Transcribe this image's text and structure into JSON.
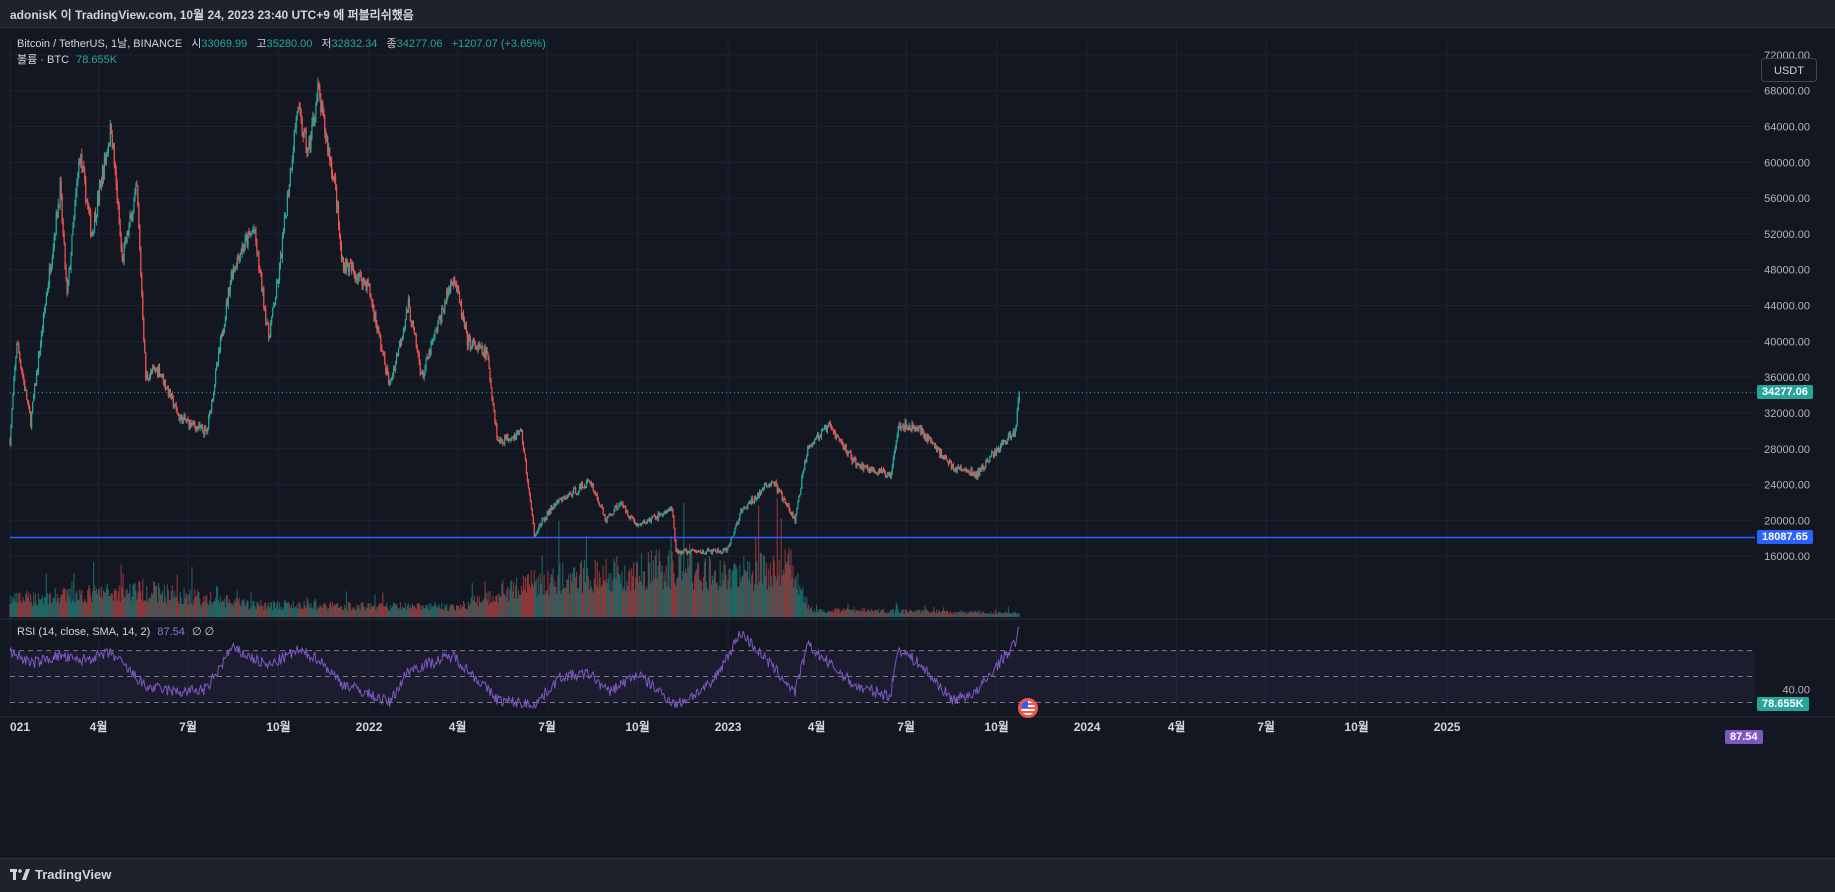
{
  "header": {
    "publish_line": "adonisK 이 TradingView.com, 10월 24, 2023 23:40 UTC+9 에 퍼블리쉬했음"
  },
  "legend": {
    "symbol": "Bitcoin / TetherUS, 1날, BINANCE",
    "o_label": "시",
    "o_value": "33069.99",
    "h_label": "고",
    "h_value": "35280.00",
    "l_label": "저",
    "l_value": "32832.34",
    "c_label": "종",
    "c_value": "34277.06",
    "change": "+1207.07 (+3.65%)",
    "volume_label": "볼륨 · BTC",
    "volume_value": "78.655K"
  },
  "rsi_legend": {
    "label": "RSI (14, close, SMA, 14, 2)",
    "value": "87.54",
    "extra": "∅ ∅"
  },
  "currency_button": "USDT",
  "price_tags": {
    "last_price": "34277.06",
    "horizontal_line": "18087.65",
    "volume": "78.655K",
    "rsi": "87.54"
  },
  "colors": {
    "background": "#131722",
    "up": "#26a69a",
    "down": "#ef5350",
    "hline": "#2962ff",
    "rsi": "#7e57c2"
  },
  "footer": {
    "brand": "TradingView"
  },
  "chart_data": [
    {
      "type": "candlestick",
      "title": "Bitcoin / TetherUS, 1날, BINANCE",
      "xlim": [
        "2021-01-01",
        "2025-11-10"
      ],
      "ylim": [
        12000,
        74000
      ],
      "y_ticks": [
        "72000.00",
        "68000.00",
        "64000.00",
        "60000.00",
        "56000.00",
        "52000.00",
        "48000.00",
        "44000.00",
        "40000.00",
        "36000.00",
        "32000.00",
        "28000.00",
        "24000.00",
        "20000.00",
        "16000.00"
      ],
      "x_ticks": [
        {
          "date": "2021-01-01",
          "label": "021"
        },
        {
          "date": "2021-04-01",
          "label": "4월"
        },
        {
          "date": "2021-07-01",
          "label": "7월"
        },
        {
          "date": "2021-10-01",
          "label": "10월"
        },
        {
          "date": "2022-01-01",
          "label": "2022"
        },
        {
          "date": "2022-04-01",
          "label": "4월"
        },
        {
          "date": "2022-07-01",
          "label": "7월"
        },
        {
          "date": "2022-10-01",
          "label": "10월"
        },
        {
          "date": "2023-01-01",
          "label": "2023"
        },
        {
          "date": "2023-04-01",
          "label": "4월"
        },
        {
          "date": "2023-07-01",
          "label": "7월"
        },
        {
          "date": "2023-10-01",
          "label": "10월"
        },
        {
          "date": "2024-01-01",
          "label": "2024"
        },
        {
          "date": "2024-04-01",
          "label": "4월"
        },
        {
          "date": "2024-07-01",
          "label": "7월"
        },
        {
          "date": "2024-10-01",
          "label": "10월"
        },
        {
          "date": "2025-01-01",
          "label": "2025"
        }
      ],
      "close_path": [
        [
          "2021-01-01",
          29000
        ],
        [
          "2021-01-08",
          40000
        ],
        [
          "2021-01-22",
          31000
        ],
        [
          "2021-02-08",
          46000
        ],
        [
          "2021-02-21",
          57000
        ],
        [
          "2021-02-28",
          45000
        ],
        [
          "2021-03-13",
          61000
        ],
        [
          "2021-03-25",
          52000
        ],
        [
          "2021-04-14",
          64000
        ],
        [
          "2021-04-25",
          49000
        ],
        [
          "2021-05-10",
          57000
        ],
        [
          "2021-05-19",
          36000
        ],
        [
          "2021-06-01",
          37000
        ],
        [
          "2021-06-22",
          31500
        ],
        [
          "2021-07-20",
          29800
        ],
        [
          "2021-08-14",
          47500
        ],
        [
          "2021-08-23",
          50000
        ],
        [
          "2021-09-06",
          52500
        ],
        [
          "2021-09-21",
          40500
        ],
        [
          "2021-10-01",
          47000
        ],
        [
          "2021-10-20",
          66000
        ],
        [
          "2021-10-31",
          61000
        ],
        [
          "2021-11-10",
          68000
        ],
        [
          "2021-11-28",
          57000
        ],
        [
          "2021-12-04",
          49000
        ],
        [
          "2021-12-31",
          46300
        ],
        [
          "2022-01-22",
          35000
        ],
        [
          "2022-02-10",
          44000
        ],
        [
          "2022-02-24",
          36000
        ],
        [
          "2022-03-28",
          47500
        ],
        [
          "2022-04-11",
          40000
        ],
        [
          "2022-05-01",
          38500
        ],
        [
          "2022-05-12",
          28800
        ],
        [
          "2022-06-05",
          29900
        ],
        [
          "2022-06-18",
          18500
        ],
        [
          "2022-07-08",
          21700
        ],
        [
          "2022-08-14",
          24400
        ],
        [
          "2022-08-30",
          20000
        ],
        [
          "2022-09-13",
          22000
        ],
        [
          "2022-10-01",
          19400
        ],
        [
          "2022-11-05",
          21300
        ],
        [
          "2022-11-09",
          16500
        ],
        [
          "2022-12-31",
          16550
        ],
        [
          "2023-01-14",
          20900
        ],
        [
          "2023-02-15",
          24500
        ],
        [
          "2023-03-10",
          20000
        ],
        [
          "2023-03-23",
          28300
        ],
        [
          "2023-04-14",
          30500
        ],
        [
          "2023-05-12",
          26200
        ],
        [
          "2023-06-15",
          25000
        ],
        [
          "2023-06-23",
          30700
        ],
        [
          "2023-07-14",
          30300
        ],
        [
          "2023-08-17",
          26000
        ],
        [
          "2023-09-11",
          25100
        ],
        [
          "2023-10-01",
          27900
        ],
        [
          "2023-10-20",
          30000
        ],
        [
          "2023-10-24",
          34277
        ]
      ],
      "last_close": 34277.06,
      "horizontal_line": 18087.65
    },
    {
      "type": "bar",
      "title": "볼륨 · BTC",
      "last_value": "78.655K",
      "volume_levels": [
        [
          "2021-01-01",
          0.35
        ],
        [
          "2021-05-19",
          0.55
        ],
        [
          "2021-09-01",
          0.25
        ],
        [
          "2021-12-31",
          0.22
        ],
        [
          "2022-04-01",
          0.2
        ],
        [
          "2022-06-18",
          0.7
        ],
        [
          "2022-09-01",
          0.9
        ],
        [
          "2022-11-09",
          1.0
        ],
        [
          "2023-01-01",
          0.85
        ],
        [
          "2023-03-10",
          1.0
        ],
        [
          "2023-03-25",
          0.15
        ],
        [
          "2023-10-24",
          0.08
        ]
      ]
    },
    {
      "type": "line",
      "title": "RSI (14, close, SMA, 14, 2)",
      "ylim": [
        25,
        92
      ],
      "y_ticks": [
        "40.00"
      ],
      "bands": [
        30,
        50,
        70
      ],
      "last_value": 87.54,
      "values": [
        [
          "2021-01-01",
          70
        ],
        [
          "2021-01-22",
          60
        ],
        [
          "2021-02-21",
          66
        ],
        [
          "2021-03-10",
          62
        ],
        [
          "2021-04-14",
          68
        ],
        [
          "2021-05-19",
          42
        ],
        [
          "2021-06-22",
          38
        ],
        [
          "2021-07-20",
          40
        ],
        [
          "2021-08-14",
          72
        ],
        [
          "2021-09-21",
          58
        ],
        [
          "2021-10-20",
          70
        ],
        [
          "2021-11-10",
          64
        ],
        [
          "2021-12-04",
          45
        ],
        [
          "2022-01-22",
          30
        ],
        [
          "2022-02-10",
          55
        ],
        [
          "2022-03-28",
          66
        ],
        [
          "2022-05-12",
          32
        ],
        [
          "2022-06-18",
          28
        ],
        [
          "2022-07-15",
          50
        ],
        [
          "2022-08-14",
          52
        ],
        [
          "2022-09-01",
          38
        ],
        [
          "2022-10-01",
          52
        ],
        [
          "2022-11-09",
          28
        ],
        [
          "2022-12-15",
          44
        ],
        [
          "2023-01-14",
          84
        ],
        [
          "2023-02-10",
          62
        ],
        [
          "2023-03-10",
          38
        ],
        [
          "2023-03-23",
          74
        ],
        [
          "2023-05-12",
          42
        ],
        [
          "2023-06-15",
          35
        ],
        [
          "2023-06-23",
          72
        ],
        [
          "2023-07-14",
          60
        ],
        [
          "2023-08-17",
          32
        ],
        [
          "2023-09-11",
          38
        ],
        [
          "2023-10-01",
          58
        ],
        [
          "2023-10-20",
          76
        ],
        [
          "2023-10-24",
          87.54
        ]
      ]
    }
  ]
}
